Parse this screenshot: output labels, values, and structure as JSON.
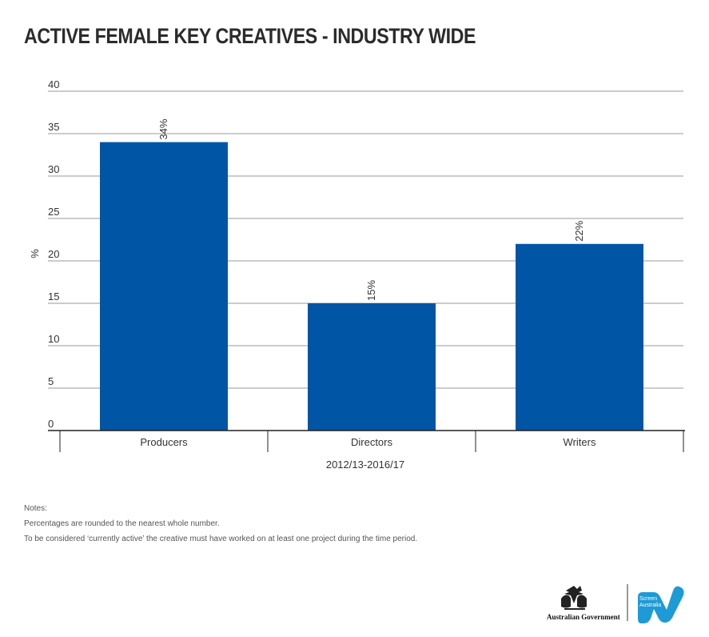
{
  "title": "ACTIVE FEMALE KEY CREATIVES - INDUSTRY WIDE",
  "chart_data": {
    "type": "bar",
    "categories": [
      "Producers",
      "Directors",
      "Writers"
    ],
    "values": [
      34,
      15,
      22
    ],
    "value_labels": [
      "34%",
      "15%",
      "22%"
    ],
    "xlabel": "2012/13-2016/17",
    "ylabel": "%",
    "ylim": [
      0,
      40
    ],
    "yticks": [
      0,
      5,
      10,
      15,
      20,
      25,
      30,
      35,
      40
    ],
    "grid": true,
    "bar_color": "#0155a5"
  },
  "notes": {
    "heading": "Notes:",
    "line1": "Percentages are rounded to the nearest whole number.",
    "line2": "To be considered ‘currently active’ the creative must have worked on at least one project during the time period."
  },
  "logos": {
    "government": "Australian Government",
    "screen_australia": "Screen\nAustralia",
    "screen_australia_color": "#1e9ad6"
  }
}
